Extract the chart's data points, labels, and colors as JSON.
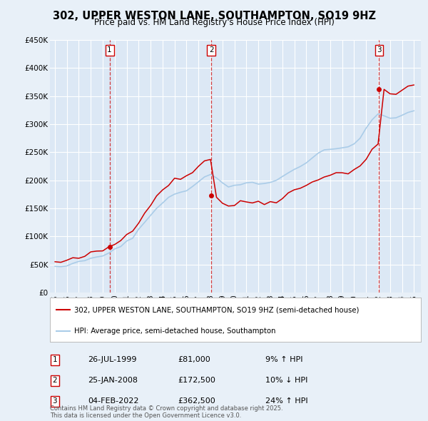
{
  "title": "302, UPPER WESTON LANE, SOUTHAMPTON, SO19 9HZ",
  "subtitle": "Price paid vs. HM Land Registry's House Price Index (HPI)",
  "bg_color": "#e8f0f8",
  "plot_bg_color": "#dce8f5",
  "ylim": [
    0,
    450000
  ],
  "yticks": [
    0,
    50000,
    100000,
    150000,
    200000,
    250000,
    300000,
    350000,
    400000,
    450000
  ],
  "ytick_labels": [
    "£0",
    "£50K",
    "£100K",
    "£150K",
    "£200K",
    "£250K",
    "£300K",
    "£350K",
    "£400K",
    "£450K"
  ],
  "xlim_start": 1994.6,
  "xlim_end": 2025.6,
  "purchases": [
    {
      "date_label": "26-JUL-1999",
      "year": 1999.57,
      "price": 81000,
      "label": "1",
      "hpi_pct": "9% ↑ HPI"
    },
    {
      "date_label": "25-JAN-2008",
      "year": 2008.07,
      "price": 172500,
      "label": "2",
      "hpi_pct": "10% ↓ HPI"
    },
    {
      "date_label": "04-FEB-2022",
      "year": 2022.09,
      "price": 362500,
      "label": "3",
      "hpi_pct": "24% ↑ HPI"
    }
  ],
  "legend_property": "302, UPPER WESTON LANE, SOUTHAMPTON, SO19 9HZ (semi-detached house)",
  "legend_hpi": "HPI: Average price, semi-detached house, Southampton",
  "footer": "Contains HM Land Registry data © Crown copyright and database right 2025.\nThis data is licensed under the Open Government Licence v3.0.",
  "property_color": "#cc0000",
  "hpi_color": "#aacce8"
}
